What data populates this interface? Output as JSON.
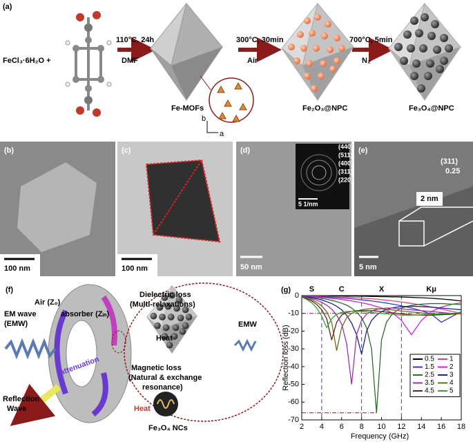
{
  "panel_a": {
    "label": "(a)",
    "reactant": "FeCl₃·6H₂O +",
    "steps": [
      {
        "condition": "110°C, 24h",
        "medium": "DMF"
      },
      {
        "condition": "300°C, 30min",
        "medium": "Air"
      },
      {
        "condition": "700°C, 5min",
        "medium": "N₂"
      }
    ],
    "products": [
      "Fe-MOFs",
      "Fe₂O₃@NPC",
      "Fe₃O₄@NPC"
    ],
    "axes": [
      "b",
      "a"
    ]
  },
  "micrographs": [
    {
      "label": "(b)",
      "scale_bar": "100 nm"
    },
    {
      "label": "(c)",
      "scale_bar": "100 nm"
    },
    {
      "label": "(d)",
      "scale_bar": "50 nm",
      "inset_scale_bar": "5 1/nm",
      "rings": [
        "(440)",
        "(511)",
        "(400)",
        "(311)",
        "(220)"
      ]
    },
    {
      "label": "(e)",
      "scale_bar": "5 nm",
      "inset_scale_bar": "2 nm",
      "plane": "(311)",
      "spacing": "0.25"
    }
  ],
  "panel_f": {
    "label": "(f)",
    "air": "Air (Z₀)",
    "wave": [
      "EM wave",
      "(EMW)"
    ],
    "absorber": "absorber (Zᵢₙ)",
    "attenuation": "attenuation",
    "reflection": [
      "Reflection",
      "Wave"
    ],
    "dielectric": [
      "Dielectric loss",
      "(Multi-relaxations)"
    ],
    "emw": "EMW",
    "heat": [
      "Heat",
      "Heat"
    ],
    "magnetic": [
      "Magnetic loss",
      "(Natural & exchange",
      "resonance)"
    ],
    "particles": "Fe₃O₄ NCs"
  },
  "chart_data": {
    "type": "line",
    "panel_label": "(g)",
    "x_label": "Frequency (GHz)",
    "y_label": "Reflection loss (dB)",
    "x": [
      2,
      2.5,
      3,
      3.5,
      4,
      4.5,
      5,
      5.5,
      6,
      6.5,
      7,
      7.5,
      8,
      8.5,
      9,
      9.5,
      10,
      10.5,
      11,
      11.5,
      12,
      13,
      14,
      15,
      16,
      17,
      18
    ],
    "xlim": [
      2,
      18
    ],
    "xticks": [
      2,
      4,
      6,
      8,
      10,
      12,
      14,
      16,
      18
    ],
    "ylim": [
      -70,
      0
    ],
    "yticks": [
      0,
      -10,
      -20,
      -30,
      -40,
      -50,
      -60,
      -70
    ],
    "band_edges": [
      4,
      8,
      12
    ],
    "band_labels": [
      "S",
      "C",
      "X",
      "Kμ"
    ],
    "reference_lines": [
      -10,
      -66
    ],
    "series": [
      {
        "name": "0.5",
        "color": "#000000",
        "values": [
          0,
          0,
          0,
          -0.1,
          -0.1,
          -0.1,
          -0.2,
          -0.2,
          -0.2,
          -0.3,
          -0.3,
          -0.3,
          -0.4,
          -0.4,
          -0.5,
          -0.5,
          -0.6,
          -0.6,
          -0.7,
          -0.7,
          -0.8,
          -1,
          -1.2,
          -1.5,
          -1.9,
          -2.4,
          -3
        ]
      },
      {
        "name": "1",
        "color": "#e0407a",
        "values": [
          0,
          -0.1,
          -0.2,
          -0.3,
          -0.4,
          -0.5,
          -0.6,
          -0.7,
          -0.8,
          -0.9,
          -1,
          -1.2,
          -1.4,
          -1.6,
          -1.8,
          -2,
          -2.3,
          -2.6,
          -2.9,
          -3.2,
          -3.6,
          -4.4,
          -5.3,
          -6.4,
          -7.6,
          -8.8,
          -10
        ]
      },
      {
        "name": "1.5",
        "color": "#3535c8",
        "values": [
          0,
          -0.2,
          -0.3,
          -0.5,
          -0.6,
          -0.8,
          -1,
          -1.2,
          -1.4,
          -1.6,
          -1.8,
          -2.1,
          -2.4,
          -2.7,
          -3,
          -3.4,
          -3.8,
          -4.2,
          -4.7,
          -5.2,
          -5.8,
          -7,
          -8.5,
          -10.5,
          -15,
          -12,
          -9
        ]
      },
      {
        "name": "2",
        "color": "#d020d0",
        "values": [
          -0.1,
          -0.3,
          -0.5,
          -0.7,
          -1,
          -1.3,
          -1.6,
          -1.9,
          -2.2,
          -2.6,
          -3,
          -3.5,
          -4,
          -4.6,
          -5.3,
          -6.1,
          -7,
          -8.2,
          -9.6,
          -11.5,
          -14,
          -22,
          -14,
          -9,
          -6.5,
          -5,
          -4
        ]
      },
      {
        "name": "2.5",
        "color": "#2f6a2f",
        "values": [
          -0.2,
          -0.5,
          -0.8,
          -1.2,
          -1.6,
          -2.1,
          -2.7,
          -3.4,
          -4.3,
          -5.4,
          -7,
          -9.2,
          -12.5,
          -18,
          -30,
          -66,
          -25,
          -15,
          -11,
          -8.5,
          -7,
          -5.5,
          -4.8,
          -4.5,
          -4.5,
          -4.8,
          -5
        ]
      },
      {
        "name": "3",
        "color": "#20208a",
        "values": [
          -0.3,
          -0.7,
          -1.2,
          -1.8,
          -2.5,
          -3.4,
          -4.5,
          -6,
          -8,
          -11,
          -15.5,
          -22,
          -33,
          -20,
          -14,
          -11,
          -9,
          -7.8,
          -7,
          -6.5,
          -6.2,
          -6,
          -6.2,
          -6.5,
          -7,
          -7.5,
          -8
        ]
      },
      {
        "name": "3.5",
        "color": "#9a30b0",
        "values": [
          -0.4,
          -1,
          -1.7,
          -2.6,
          -3.8,
          -5.4,
          -7.6,
          -11,
          -16,
          -27,
          -50,
          -22,
          -14,
          -10.5,
          -8.8,
          -7.8,
          -7.3,
          -7,
          -7,
          -7.2,
          -7.5,
          -8,
          -8.5,
          -9,
          -9.5,
          -10,
          -10
        ]
      },
      {
        "name": "4",
        "color": "#6b6b1e",
        "values": [
          -0.5,
          -1.3,
          -2.3,
          -3.8,
          -5.8,
          -9,
          -15,
          -31,
          -18,
          -12.5,
          -10,
          -8.8,
          -8,
          -7.6,
          -7.4,
          -7.4,
          -7.5,
          -7.7,
          -8,
          -8.3,
          -8.7,
          -9.2,
          -9.8,
          -10.3,
          -10.5,
          -10.5,
          -10.2
        ]
      },
      {
        "name": "4.5",
        "color": "#6a2020",
        "values": [
          -0.7,
          -1.7,
          -3,
          -5,
          -8,
          -13,
          -25,
          -15,
          -11,
          -9.5,
          -8.8,
          -8.5,
          -8.4,
          -8.4,
          -8.5,
          -8.7,
          -9,
          -9.3,
          -9.6,
          -10,
          -10.3,
          -10.8,
          -11,
          -11,
          -10.8,
          -10.5,
          -10
        ]
      },
      {
        "name": "5",
        "color": "#35a535",
        "values": [
          -0.9,
          -2.2,
          -4,
          -7,
          -11.5,
          -18,
          -13,
          -10.5,
          -9.5,
          -9,
          -8.8,
          -8.8,
          -9,
          -9.2,
          -9.5,
          -9.8,
          -10,
          -10.3,
          -10.5,
          -10.8,
          -11,
          -11,
          -10.8,
          -10.5,
          -10.2,
          -10,
          -9.8
        ]
      }
    ]
  }
}
